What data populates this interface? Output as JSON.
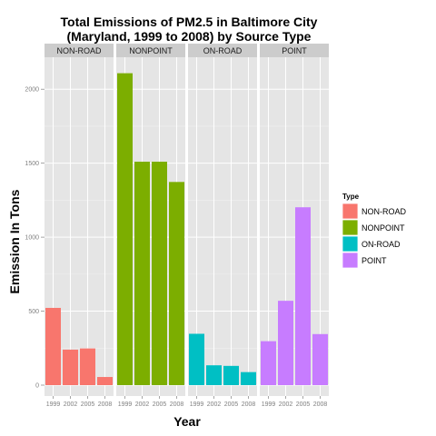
{
  "chart_data": {
    "type": "bar",
    "title": [
      "Total Emissions of PM2.5 in Baltimore City",
      "(Maryland, 1999 to 2008) by Source Type"
    ],
    "xlabel": "Year",
    "ylabel": "Emission In Tons",
    "ylim": [
      0,
      2200
    ],
    "yticks": [
      0,
      500,
      1000,
      1500,
      2000
    ],
    "categories": [
      "1999",
      "2002",
      "2005",
      "2008"
    ],
    "facets": [
      {
        "name": "NON-ROAD",
        "color": "#F8766D",
        "values": [
          522,
          240,
          248,
          55
        ]
      },
      {
        "name": "NONPOINT",
        "color": "#7CAE00",
        "values": [
          2108,
          1510,
          1510,
          1373
        ]
      },
      {
        "name": "ON-ROAD",
        "color": "#00BFC4",
        "values": [
          347,
          134,
          130,
          88
        ]
      },
      {
        "name": "POINT",
        "color": "#C77CFF",
        "values": [
          297,
          570,
          1202,
          345
        ]
      }
    ],
    "legend": {
      "title": "Type",
      "position": "right"
    },
    "grid": true
  }
}
